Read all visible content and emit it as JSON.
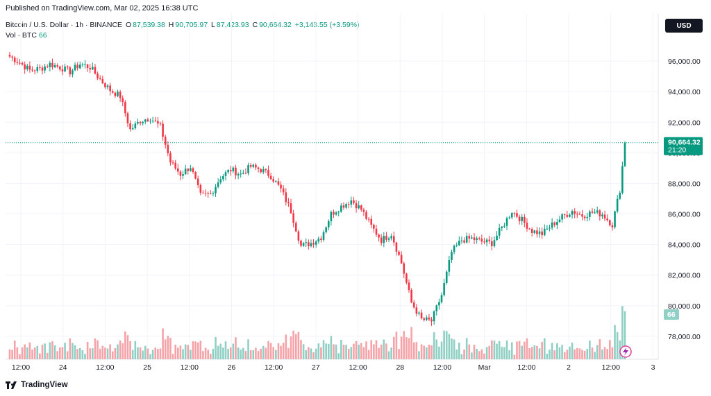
{
  "header": {
    "published": "Published on TradingView.com, Mar 02, 2025 16:38 UTC"
  },
  "legend": {
    "symbol": "Bitcoin / U.S. Dollar · 1h · BINANCE",
    "o_label": "O",
    "o_value": "87,539.38",
    "h_label": "H",
    "h_value": "90,705.97",
    "l_label": "L",
    "l_value": "87,423.93",
    "c_label": "C",
    "c_value": "90,664.32",
    "change": "+3,143.55 (+3.59%)",
    "vol_label": "Vol · BTC",
    "vol_value": "66"
  },
  "currency_button": "USD",
  "footer": {
    "brand": "TradingView"
  },
  "colors": {
    "up": "#089981",
    "down": "#f23645",
    "vol_up": "#8fcfc4",
    "vol_down": "#f5a3a8",
    "grid": "#f0f3fa"
  },
  "chart_data": {
    "type": "candlestick",
    "symbol": "BTCUSD",
    "interval": "1h",
    "ylim": [
      76500,
      97500
    ],
    "y_ticks": [
      "96,000.00",
      "94,000.00",
      "92,000.00",
      "90,000.00",
      "88,000.00",
      "86,000.00",
      "84,000.00",
      "82,000.00",
      "80,000.00",
      "78,000.00"
    ],
    "y_tick_values": [
      96000,
      94000,
      92000,
      90000,
      88000,
      86000,
      84000,
      82000,
      80000,
      78000
    ],
    "x_ticks": [
      "12:00",
      "24",
      "12:00",
      "25",
      "12:00",
      "26",
      "12:00",
      "27",
      "12:00",
      "28",
      "12:00",
      "Mar",
      "12:00",
      "2",
      "12:00",
      "3"
    ],
    "last_price_label": "90,664.32",
    "last_price": 90664.32,
    "countdown": "21:20",
    "volume_label": "66",
    "close_path": [
      [
        0,
        96300
      ],
      [
        4,
        95900
      ],
      [
        8,
        95400
      ],
      [
        12,
        95500
      ],
      [
        16,
        95800
      ],
      [
        20,
        95600
      ],
      [
        24,
        95300
      ],
      [
        28,
        95800
      ],
      [
        32,
        95600
      ],
      [
        36,
        94800
      ],
      [
        40,
        94100
      ],
      [
        44,
        93700
      ],
      [
        48,
        91500
      ],
      [
        52,
        92100
      ],
      [
        56,
        92300
      ],
      [
        60,
        91700
      ],
      [
        64,
        89400
      ],
      [
        68,
        88600
      ],
      [
        72,
        89100
      ],
      [
        76,
        87200
      ],
      [
        80,
        87300
      ],
      [
        84,
        88400
      ],
      [
        88,
        88900
      ],
      [
        92,
        88600
      ],
      [
        96,
        89100
      ],
      [
        100,
        88900
      ],
      [
        104,
        88500
      ],
      [
        108,
        87600
      ],
      [
        112,
        86200
      ],
      [
        116,
        83900
      ],
      [
        120,
        84100
      ],
      [
        124,
        84500
      ],
      [
        128,
        86000
      ],
      [
        132,
        86500
      ],
      [
        136,
        86900
      ],
      [
        140,
        86300
      ],
      [
        144,
        85200
      ],
      [
        148,
        84300
      ],
      [
        152,
        84700
      ],
      [
        156,
        82800
      ],
      [
        160,
        80200
      ],
      [
        164,
        79100
      ],
      [
        168,
        79000
      ],
      [
        172,
        80700
      ],
      [
        176,
        83500
      ],
      [
        180,
        84300
      ],
      [
        184,
        84400
      ],
      [
        188,
        84200
      ],
      [
        192,
        84100
      ],
      [
        196,
        85100
      ],
      [
        200,
        86200
      ],
      [
        204,
        85600
      ],
      [
        208,
        84900
      ],
      [
        212,
        84700
      ],
      [
        216,
        85300
      ],
      [
        220,
        85800
      ],
      [
        224,
        86200
      ],
      [
        228,
        85900
      ],
      [
        232,
        86100
      ],
      [
        236,
        86000
      ],
      [
        240,
        85300
      ],
      [
        243,
        87600
      ],
      [
        245,
        90664
      ]
    ]
  }
}
